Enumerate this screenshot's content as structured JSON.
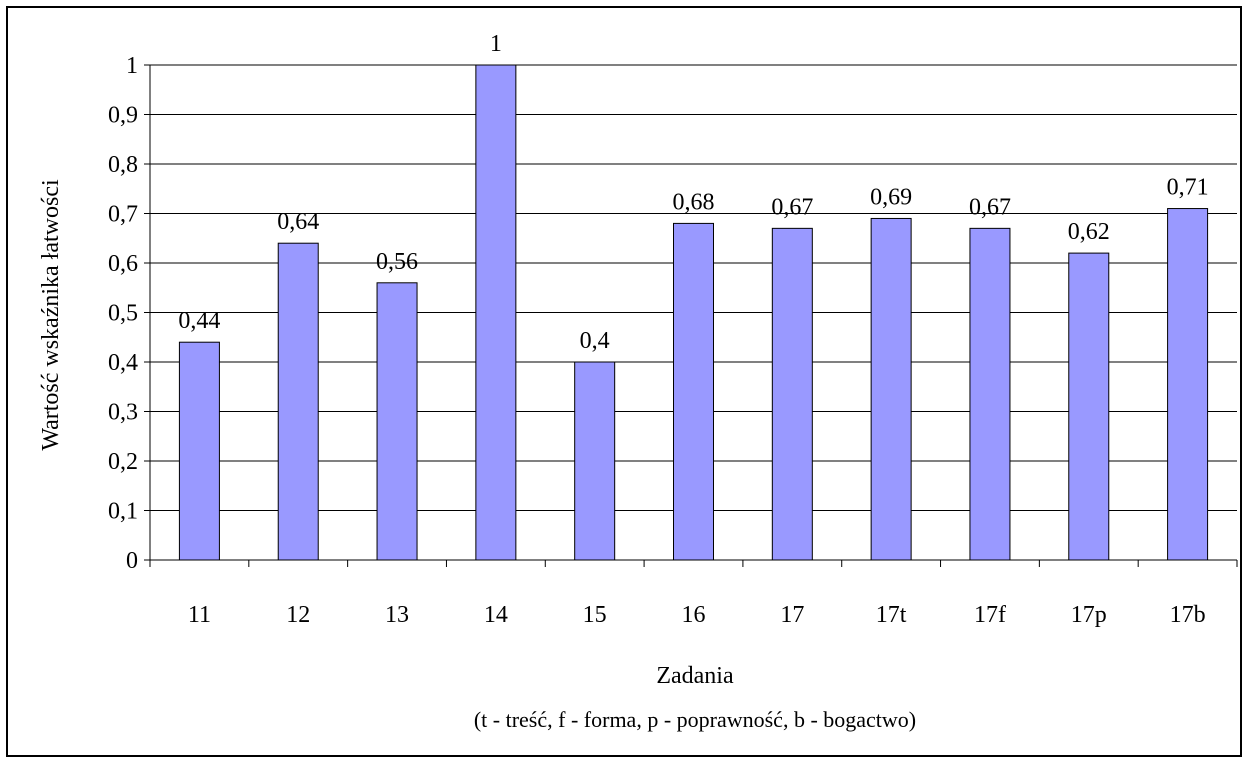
{
  "chart_data": {
    "type": "bar",
    "categories": [
      "11",
      "12",
      "13",
      "14",
      "15",
      "16",
      "17",
      "17t",
      "17f",
      "17p",
      "17b"
    ],
    "values": [
      0.44,
      0.64,
      0.56,
      1,
      0.4,
      0.68,
      0.67,
      0.69,
      0.67,
      0.62,
      0.71
    ],
    "data_labels": [
      "0,44",
      "0,64",
      "0,56",
      "1",
      "0,4",
      "0,68",
      "0,67",
      "0,69",
      "0,67",
      "0,62",
      "0,71"
    ],
    "ylabel": "Wartość wskaźnika łatwości",
    "xlabel": "Zadania",
    "xlabel_note": "(t - treść, f - forma, p - poprawność, b - bogactwo)",
    "ylim": [
      0,
      1
    ],
    "yticks": [
      0,
      0.1,
      0.2,
      0.3,
      0.4,
      0.5,
      0.6,
      0.7,
      0.8,
      0.9,
      1
    ],
    "ytick_labels": [
      "0",
      "0,1",
      "0,2",
      "0,3",
      "0,4",
      "0,5",
      "0,6",
      "0,7",
      "0,8",
      "0,9",
      "1"
    ],
    "grid": true,
    "legend": "none",
    "colors": {
      "bar_fill": "#9999ff",
      "bar_stroke": "#000000",
      "grid": "#000000",
      "frame": "#000000"
    }
  }
}
